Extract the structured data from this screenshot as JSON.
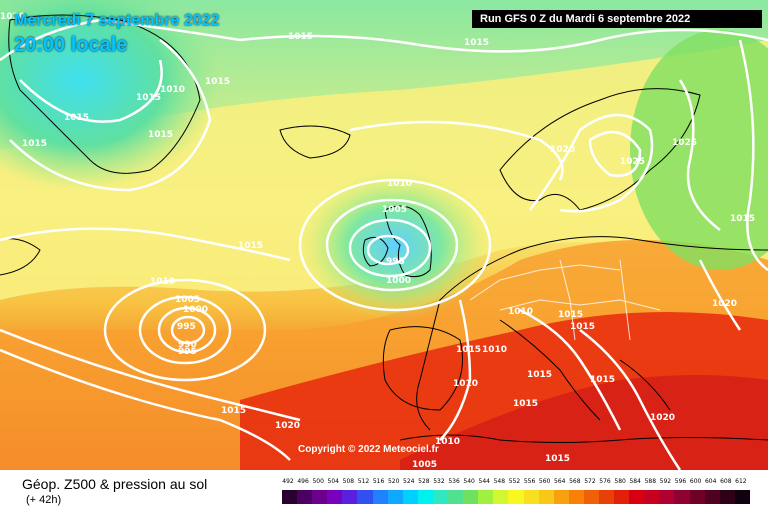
{
  "header": {
    "date": "Mercredi 7 septembre 2022",
    "time": "20:00 locale",
    "run": "Run GFS 0 Z du Mardi 6 septembre 2022"
  },
  "copyright": "Copyright © 2022 Meteociel.fr",
  "footer": {
    "product": "Géop. Z500 & pression au sol",
    "step": "(+ 42h)"
  },
  "scale": {
    "values": [
      "492",
      "496",
      "500",
      "504",
      "508",
      "512",
      "516",
      "520",
      "524",
      "528",
      "532",
      "536",
      "540",
      "544",
      "548",
      "552",
      "556",
      "560",
      "564",
      "568",
      "572",
      "576",
      "580",
      "584",
      "588",
      "592",
      "596",
      "600",
      "604",
      "608",
      "612"
    ],
    "colors": [
      "#2a0030",
      "#4a0060",
      "#6a008c",
      "#7a00c0",
      "#5a20e0",
      "#3050f0",
      "#2080ff",
      "#10a8ff",
      "#00d0ff",
      "#00f0f0",
      "#30e8c0",
      "#50e090",
      "#70e060",
      "#a0f040",
      "#d0f830",
      "#f8f820",
      "#f8e020",
      "#f8c818",
      "#f8a010",
      "#f88008",
      "#f06008",
      "#e84008",
      "#e02008",
      "#d80010",
      "#c80020",
      "#b00030",
      "#900030",
      "#700028",
      "#500020",
      "#300018",
      "#100010"
    ]
  },
  "isobars": [
    "1020",
    "1015",
    "1010",
    "1015",
    "1015",
    "1015",
    "1015",
    "1015",
    "1015",
    "1020",
    "1025",
    "1025",
    "1015",
    "1010",
    "1005",
    "995",
    "1000",
    "1015",
    "1010",
    "1005",
    "1000",
    "995",
    "990",
    "995",
    "1020",
    "1010",
    "1015",
    "1015",
    "1010",
    "1015",
    "1010",
    "1015",
    "1015",
    "1015",
    "1015",
    "1020",
    "1010",
    "1005",
    "1015",
    "1020"
  ]
}
